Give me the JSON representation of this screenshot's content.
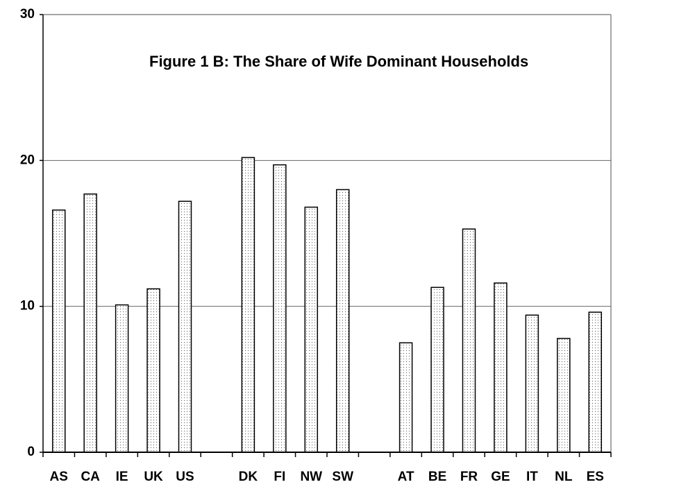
{
  "chart_data": {
    "type": "bar",
    "title": "Figure 1 B: The Share of Wife Dominant Households",
    "categories": [
      "AS",
      "CA",
      "IE",
      "UK",
      "US",
      null,
      "DK",
      "FI",
      "NW",
      "SW",
      null,
      "AT",
      "BE",
      "FR",
      "GE",
      "IT",
      "NL",
      "ES"
    ],
    "values": [
      16.6,
      17.7,
      10.1,
      11.2,
      17.2,
      null,
      20.2,
      19.7,
      16.8,
      18.0,
      null,
      7.5,
      11.3,
      15.3,
      11.6,
      9.4,
      7.8,
      9.6
    ],
    "color": "#ffffff",
    "ylim": [
      0,
      30
    ],
    "yticks": [
      0,
      10,
      20,
      30
    ],
    "grid": true
  }
}
